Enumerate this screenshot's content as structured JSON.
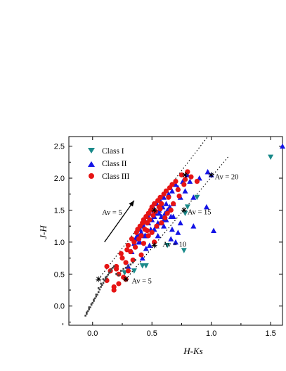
{
  "chart_data": {
    "type": "scatter",
    "title": "",
    "xlabel": "H-Ks",
    "ylabel": "J-H",
    "xlim": [
      -0.2,
      1.6
    ],
    "ylim": [
      -0.3,
      2.65
    ],
    "x_ticks": [
      0.0,
      0.5,
      1.0,
      1.5
    ],
    "y_ticks": [
      0.0,
      0.5,
      1.0,
      1.5,
      2.0,
      2.5
    ],
    "x_tick_labels": [
      "0.0",
      "0.5",
      "1.0",
      "1.5"
    ],
    "y_tick_labels": [
      "0.0",
      "0.5",
      "1.0",
      "1.5",
      "2.0",
      "2.5"
    ],
    "grid": false,
    "legend_position": "top-left",
    "legend": [
      {
        "label": "Class I",
        "marker": "triangle-down",
        "color": "#1a8a8a"
      },
      {
        "label": "Class II",
        "marker": "triangle-up",
        "color": "#1414e6"
      },
      {
        "label": "Class III",
        "marker": "circle",
        "color": "#e61414"
      }
    ],
    "series": [
      {
        "name": "Class I",
        "marker": "triangle-down",
        "color": "#1a8a8a",
        "x": [
          0.27,
          0.35,
          0.42,
          0.45,
          0.63,
          0.77,
          0.8,
          0.88,
          1.5,
          0.78
        ],
        "y": [
          0.52,
          0.55,
          0.63,
          0.63,
          0.95,
          0.87,
          1.55,
          1.7,
          2.33,
          1.45
        ]
      },
      {
        "name": "Class II",
        "marker": "triangle-up",
        "color": "#1414e6",
        "x": [
          0.3,
          0.33,
          0.35,
          0.37,
          0.38,
          0.39,
          0.4,
          0.41,
          0.42,
          0.43,
          0.44,
          0.45,
          0.46,
          0.47,
          0.48,
          0.49,
          0.5,
          0.5,
          0.51,
          0.52,
          0.53,
          0.54,
          0.55,
          0.56,
          0.57,
          0.58,
          0.59,
          0.6,
          0.61,
          0.62,
          0.63,
          0.64,
          0.65,
          0.66,
          0.67,
          0.68,
          0.7,
          0.72,
          0.74,
          0.76,
          0.78,
          0.8,
          0.82,
          0.85,
          0.9,
          0.97,
          1.0,
          1.02,
          0.55,
          0.6,
          0.45,
          0.48,
          0.52,
          0.58,
          0.62,
          0.67,
          0.72,
          0.4,
          0.44,
          0.36,
          0.38,
          0.42,
          0.7,
          0.66,
          0.56,
          0.5,
          0.47,
          0.53,
          1.6,
          0.96,
          0.85,
          0.74,
          0.68,
          0.6,
          0.54
        ],
        "y": [
          0.62,
          0.85,
          0.98,
          1.05,
          1.12,
          1.0,
          1.2,
          1.15,
          1.3,
          1.25,
          1.35,
          1.1,
          1.4,
          1.3,
          1.45,
          1.2,
          1.5,
          1.35,
          1.55,
          1.4,
          1.45,
          1.6,
          1.3,
          1.5,
          1.65,
          1.4,
          1.55,
          1.7,
          1.45,
          1.6,
          1.5,
          1.75,
          1.55,
          1.4,
          1.8,
          1.6,
          1.9,
          1.85,
          1.7,
          1.95,
          1.8,
          2.05,
          1.95,
          1.7,
          2.0,
          2.1,
          2.05,
          1.18,
          1.1,
          1.25,
          0.9,
          0.95,
          1.2,
          1.3,
          1.35,
          1.2,
          1.15,
          1.0,
          1.1,
          1.05,
          1.2,
          0.75,
          1.0,
          1.05,
          1.45,
          1.55,
          1.4,
          1.6,
          2.5,
          1.55,
          1.25,
          1.3,
          1.4,
          1.35,
          1.25
        ]
      },
      {
        "name": "Class III",
        "marker": "circle",
        "color": "#e61414",
        "x": [
          0.12,
          0.15,
          0.18,
          0.2,
          0.22,
          0.25,
          0.28,
          0.3,
          0.32,
          0.33,
          0.35,
          0.37,
          0.38,
          0.4,
          0.41,
          0.42,
          0.43,
          0.44,
          0.45,
          0.46,
          0.47,
          0.48,
          0.49,
          0.5,
          0.51,
          0.52,
          0.53,
          0.55,
          0.56,
          0.57,
          0.58,
          0.6,
          0.62,
          0.64,
          0.65,
          0.67,
          0.7,
          0.72,
          0.75,
          0.78,
          0.8,
          0.83,
          0.88,
          0.18,
          0.22,
          0.26,
          0.29,
          0.34,
          0.39,
          0.43,
          0.47,
          0.52,
          0.58,
          0.63,
          0.68,
          0.73,
          0.77,
          0.2,
          0.24,
          0.3,
          0.36,
          0.41,
          0.46,
          0.54,
          0.61,
          0.66,
          0.12,
          0.28,
          0.5,
          0.57
        ],
        "y": [
          0.4,
          0.55,
          0.3,
          0.62,
          0.5,
          0.75,
          0.68,
          0.95,
          0.85,
          1.05,
          1.0,
          1.15,
          1.2,
          1.25,
          1.1,
          1.3,
          1.35,
          1.2,
          1.4,
          1.3,
          1.45,
          1.35,
          1.5,
          1.55,
          1.42,
          1.6,
          1.48,
          1.65,
          1.55,
          1.7,
          1.6,
          1.75,
          1.8,
          1.7,
          1.85,
          1.9,
          1.95,
          1.82,
          2.05,
          1.98,
          2.1,
          2.02,
          1.95,
          0.25,
          0.35,
          0.45,
          0.88,
          0.72,
          1.05,
          0.98,
          1.1,
          1.0,
          1.3,
          1.45,
          1.6,
          1.72,
          1.9,
          0.58,
          0.82,
          0.55,
          0.92,
          0.8,
          1.18,
          1.25,
          1.38,
          1.5,
          0.62,
          0.42,
          1.15,
          1.52
        ]
      },
      {
        "name": "",
        "marker": "small-square",
        "color": "#444444",
        "x": [
          -0.06,
          -0.05,
          -0.04,
          -0.03,
          -0.02,
          -0.01,
          0.0,
          0.01,
          0.02,
          0.03,
          0.04,
          0.05,
          0.06,
          0.07,
          0.08,
          0.09,
          0.1,
          0.11,
          0.12,
          0.13,
          0.14,
          0.15,
          0.16,
          0.17,
          0.18,
          0.2,
          0.22,
          0.24,
          0.26,
          0.28,
          0.3,
          0.32,
          0.34,
          0.36,
          -0.05,
          -0.03,
          -0.01,
          0.01,
          0.03,
          0.05,
          0.07,
          0.09,
          0.11
        ],
        "y": [
          -0.15,
          -0.12,
          -0.08,
          -0.05,
          -0.02,
          0.02,
          0.05,
          0.08,
          0.12,
          0.15,
          0.18,
          0.22,
          0.26,
          0.3,
          0.33,
          0.36,
          0.4,
          0.43,
          0.46,
          0.49,
          0.52,
          0.55,
          0.58,
          0.6,
          0.62,
          0.5,
          0.48,
          0.55,
          0.58,
          0.6,
          0.62,
          0.65,
          0.68,
          0.72,
          -0.1,
          -0.02,
          0.03,
          0.1,
          0.18,
          0.28,
          0.35,
          0.42,
          0.45
        ]
      }
    ],
    "reddening_lines": [
      {
        "x": [
          0.05,
          0.97
        ],
        "y": [
          0.42,
          2.65
        ]
      },
      {
        "x": [
          0.28,
          1.15
        ],
        "y": [
          0.42,
          2.35
        ]
      }
    ],
    "av_markers": [
      {
        "x": 0.05,
        "y": 0.42
      },
      {
        "x": 0.28,
        "y": 0.42
      },
      {
        "x": 0.52,
        "y": 0.95
      },
      {
        "x": 0.77,
        "y": 1.5
      },
      {
        "x": 1.0,
        "y": 2.05
      },
      {
        "x": 0.52,
        "y": 1.5
      },
      {
        "x": 0.78,
        "y": 2.05
      }
    ],
    "annotations": [
      {
        "text": "Av = 5",
        "x": 0.3,
        "y": 0.4
      },
      {
        "text": "Av = 10",
        "x": 0.56,
        "y": 0.97
      },
      {
        "text": "Av = 15",
        "x": 0.77,
        "y": 1.48
      },
      {
        "text": "Av = 20",
        "x": 1.0,
        "y": 2.03
      },
      {
        "text": "Av = 5",
        "x": 0.05,
        "y": 1.47
      }
    ],
    "arrow": {
      "x1": 0.1,
      "y1": 1.0,
      "x2": 0.35,
      "y2": 1.65
    }
  }
}
